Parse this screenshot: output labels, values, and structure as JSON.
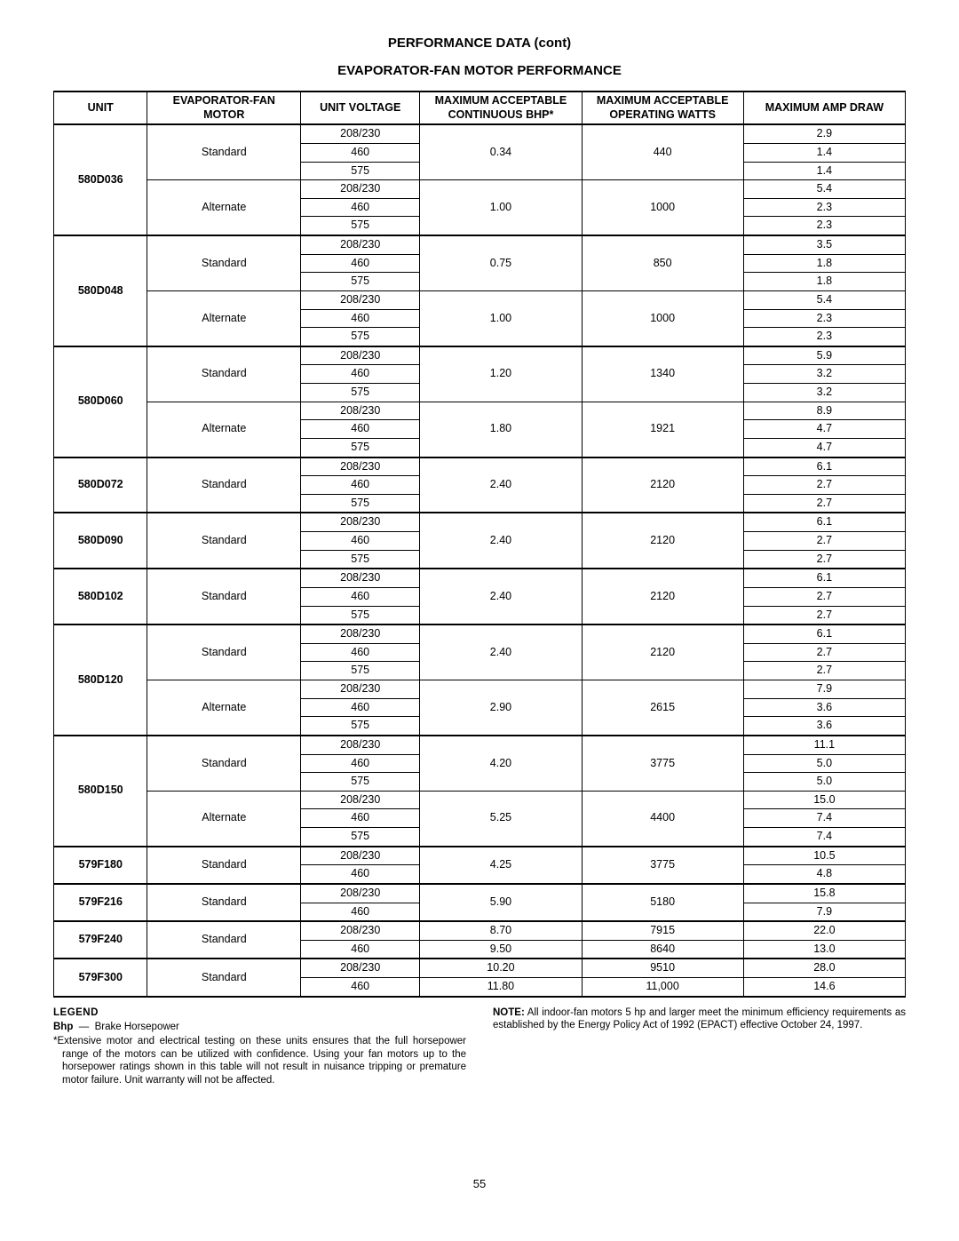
{
  "title": "PERFORMANCE DATA (cont)",
  "subtitle": "EVAPORATOR-FAN MOTOR PERFORMANCE",
  "headers": {
    "unit": "UNIT",
    "motor": "EVAPORATOR-FAN MOTOR",
    "voltage": "UNIT VOLTAGE",
    "bhp": "MAXIMUM ACCEPTABLE CONTINUOUS BHP*",
    "watts": "MAXIMUM ACCEPTABLE OPERATING WATTS",
    "amp": "MAXIMUM AMP DRAW"
  },
  "units": [
    {
      "unit": "580D036",
      "groups": [
        {
          "motor": "Standard",
          "bhp": "0.34",
          "watts": "440",
          "rows": [
            {
              "volt": "208/230",
              "amp": "2.9"
            },
            {
              "volt": "460",
              "amp": "1.4"
            },
            {
              "volt": "575",
              "amp": "1.4"
            }
          ]
        },
        {
          "motor": "Alternate",
          "bhp": "1.00",
          "watts": "1000",
          "rows": [
            {
              "volt": "208/230",
              "amp": "5.4"
            },
            {
              "volt": "460",
              "amp": "2.3"
            },
            {
              "volt": "575",
              "amp": "2.3"
            }
          ]
        }
      ]
    },
    {
      "unit": "580D048",
      "groups": [
        {
          "motor": "Standard",
          "bhp": "0.75",
          "watts": "850",
          "rows": [
            {
              "volt": "208/230",
              "amp": "3.5"
            },
            {
              "volt": "460",
              "amp": "1.8"
            },
            {
              "volt": "575",
              "amp": "1.8"
            }
          ]
        },
        {
          "motor": "Alternate",
          "bhp": "1.00",
          "watts": "1000",
          "rows": [
            {
              "volt": "208/230",
              "amp": "5.4"
            },
            {
              "volt": "460",
              "amp": "2.3"
            },
            {
              "volt": "575",
              "amp": "2.3"
            }
          ]
        }
      ]
    },
    {
      "unit": "580D060",
      "groups": [
        {
          "motor": "Standard",
          "bhp": "1.20",
          "watts": "1340",
          "rows": [
            {
              "volt": "208/230",
              "amp": "5.9"
            },
            {
              "volt": "460",
              "amp": "3.2"
            },
            {
              "volt": "575",
              "amp": "3.2"
            }
          ]
        },
        {
          "motor": "Alternate",
          "bhp": "1.80",
          "watts": "1921",
          "rows": [
            {
              "volt": "208/230",
              "amp": "8.9"
            },
            {
              "volt": "460",
              "amp": "4.7"
            },
            {
              "volt": "575",
              "amp": "4.7"
            }
          ]
        }
      ]
    },
    {
      "unit": "580D072",
      "groups": [
        {
          "motor": "Standard",
          "bhp": "2.40",
          "watts": "2120",
          "rows": [
            {
              "volt": "208/230",
              "amp": "6.1"
            },
            {
              "volt": "460",
              "amp": "2.7"
            },
            {
              "volt": "575",
              "amp": "2.7"
            }
          ]
        }
      ]
    },
    {
      "unit": "580D090",
      "groups": [
        {
          "motor": "Standard",
          "bhp": "2.40",
          "watts": "2120",
          "rows": [
            {
              "volt": "208/230",
              "amp": "6.1"
            },
            {
              "volt": "460",
              "amp": "2.7"
            },
            {
              "volt": "575",
              "amp": "2.7"
            }
          ]
        }
      ]
    },
    {
      "unit": "580D102",
      "groups": [
        {
          "motor": "Standard",
          "bhp": "2.40",
          "watts": "2120",
          "rows": [
            {
              "volt": "208/230",
              "amp": "6.1"
            },
            {
              "volt": "460",
              "amp": "2.7"
            },
            {
              "volt": "575",
              "amp": "2.7"
            }
          ]
        }
      ]
    },
    {
      "unit": "580D120",
      "groups": [
        {
          "motor": "Standard",
          "bhp": "2.40",
          "watts": "2120",
          "rows": [
            {
              "volt": "208/230",
              "amp": "6.1"
            },
            {
              "volt": "460",
              "amp": "2.7"
            },
            {
              "volt": "575",
              "amp": "2.7"
            }
          ]
        },
        {
          "motor": "Alternate",
          "bhp": "2.90",
          "watts": "2615",
          "rows": [
            {
              "volt": "208/230",
              "amp": "7.9"
            },
            {
              "volt": "460",
              "amp": "3.6"
            },
            {
              "volt": "575",
              "amp": "3.6"
            }
          ]
        }
      ]
    },
    {
      "unit": "580D150",
      "groups": [
        {
          "motor": "Standard",
          "bhp": "4.20",
          "watts": "3775",
          "rows": [
            {
              "volt": "208/230",
              "amp": "11.1"
            },
            {
              "volt": "460",
              "amp": "5.0"
            },
            {
              "volt": "575",
              "amp": "5.0"
            }
          ]
        },
        {
          "motor": "Alternate",
          "bhp": "5.25",
          "watts": "4400",
          "rows": [
            {
              "volt": "208/230",
              "amp": "15.0"
            },
            {
              "volt": "460",
              "amp": "7.4"
            },
            {
              "volt": "575",
              "amp": "7.4"
            }
          ]
        }
      ]
    },
    {
      "unit": "579F180",
      "groups": [
        {
          "motor": "Standard",
          "bhp": "4.25",
          "watts": "3775",
          "rows": [
            {
              "volt": "208/230",
              "amp": "10.5"
            },
            {
              "volt": "460",
              "amp": "4.8"
            }
          ]
        }
      ]
    },
    {
      "unit": "579F216",
      "groups": [
        {
          "motor": "Standard",
          "bhp": "5.90",
          "watts": "5180",
          "rows": [
            {
              "volt": "208/230",
              "amp": "15.8"
            },
            {
              "volt": "460",
              "amp": "7.9"
            }
          ]
        }
      ]
    },
    {
      "unit": "579F240",
      "groups": [
        {
          "motor": "Standard",
          "bhp_per_row": true,
          "rows": [
            {
              "volt": "208/230",
              "bhp": "8.70",
              "watts": "7915",
              "amp": "22.0"
            },
            {
              "volt": "460",
              "bhp": "9.50",
              "watts": "8640",
              "amp": "13.0"
            }
          ]
        }
      ]
    },
    {
      "unit": "579F300",
      "groups": [
        {
          "motor": "Standard",
          "bhp_per_row": true,
          "rows": [
            {
              "volt": "208/230",
              "bhp": "10.20",
              "watts": "9510",
              "amp": "28.0"
            },
            {
              "volt": "460",
              "bhp": "11.80",
              "watts": "11,000",
              "amp": "14.6"
            }
          ]
        }
      ]
    }
  ],
  "legend": {
    "heading": "LEGEND",
    "bhp_label": "Bhp",
    "bhp_dash": "—",
    "bhp_def": "Brake Horsepower",
    "footnote": "*Extensive motor and electrical testing on these units ensures that the full horsepower range of the motors can be utilized with confidence. Using your fan motors up to the horsepower ratings shown in this table will not result in nuisance tripping or premature motor failure. Unit warranty will not be affected.",
    "note_label": "NOTE:",
    "note_text": "All indoor-fan motors 5 hp and larger meet the minimum efficiency requirements as established by the Energy Policy Act of 1992 (EPACT) effective October 24, 1997."
  },
  "page": "55"
}
